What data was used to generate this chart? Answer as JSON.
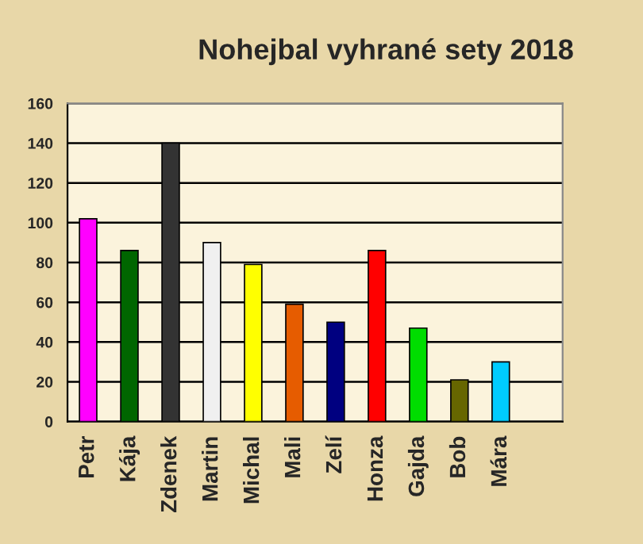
{
  "chart_data": {
    "type": "bar",
    "title": "Nohejbal vyhrané sety 2018",
    "categories": [
      "Petr",
      "Kája",
      "Zdenek",
      "Martin",
      "Michal",
      "Mali",
      "Zelí",
      "Honza",
      "Gajda",
      "Bob",
      "Mára",
      null
    ],
    "values": [
      102,
      86,
      140,
      90,
      79,
      59,
      50,
      86,
      47,
      21,
      30,
      null
    ],
    "colors": [
      "#ff00ff",
      "#006600",
      "#333333",
      "#f0f0f0",
      "#ffff00",
      "#e65c00",
      "#000080",
      "#ff0000",
      "#00dd00",
      "#666600",
      "#00ccff",
      "#000000"
    ],
    "ylim": [
      0,
      160
    ],
    "yticks": [
      0,
      20,
      40,
      60,
      80,
      100,
      120,
      140,
      160
    ],
    "grid": "y"
  }
}
